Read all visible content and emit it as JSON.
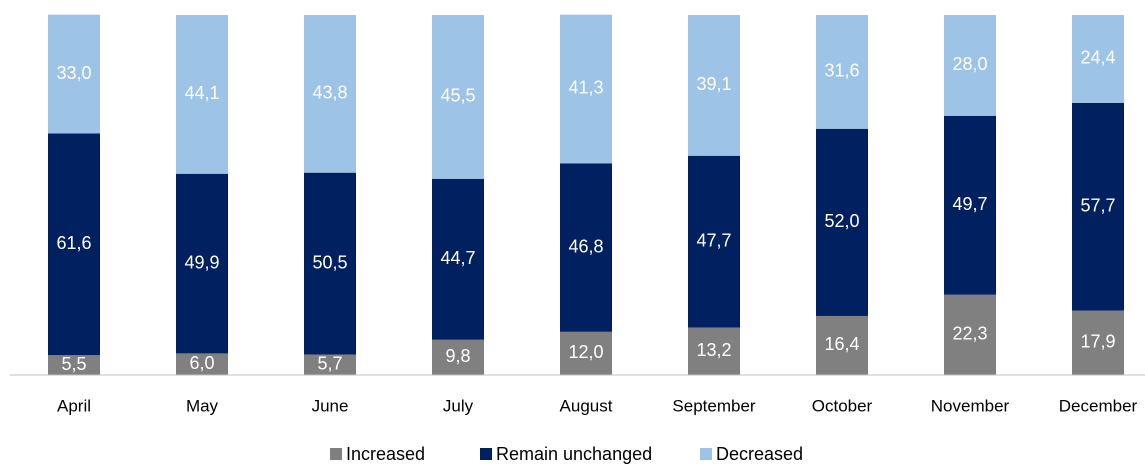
{
  "chart_data": {
    "type": "stacked_bar",
    "categories": [
      "April",
      "May",
      "June",
      "July",
      "August",
      "September",
      "October",
      "November",
      "December"
    ],
    "series": [
      {
        "name": "Increased",
        "color": "#808080",
        "values": [
          5.5,
          6.0,
          5.7,
          9.8,
          12.0,
          13.2,
          16.4,
          22.3,
          17.9
        ],
        "value_labels": [
          "5,5",
          "6,0",
          "5,7",
          "9,8",
          "12,0",
          "13,2",
          "16,4",
          "22,3",
          "17,9"
        ]
      },
      {
        "name": "Remain unchanged",
        "color": "#002060",
        "values": [
          61.6,
          49.9,
          50.5,
          44.7,
          46.8,
          47.7,
          52.0,
          49.7,
          57.7
        ],
        "value_labels": [
          "61,6",
          "49,9",
          "50,5",
          "44,7",
          "46,8",
          "47,7",
          "52,0",
          "49,7",
          "57,7"
        ]
      },
      {
        "name": "Decreased",
        "color": "#9dc3e6",
        "values": [
          33.0,
          44.1,
          43.8,
          45.5,
          41.3,
          39.1,
          31.6,
          28.0,
          24.4
        ],
        "value_labels": [
          "33,0",
          "44,1",
          "43,8",
          "45,5",
          "41,3",
          "39,1",
          "31,6",
          "28,0",
          "24,4"
        ]
      }
    ],
    "ylim": [
      0,
      100
    ]
  }
}
